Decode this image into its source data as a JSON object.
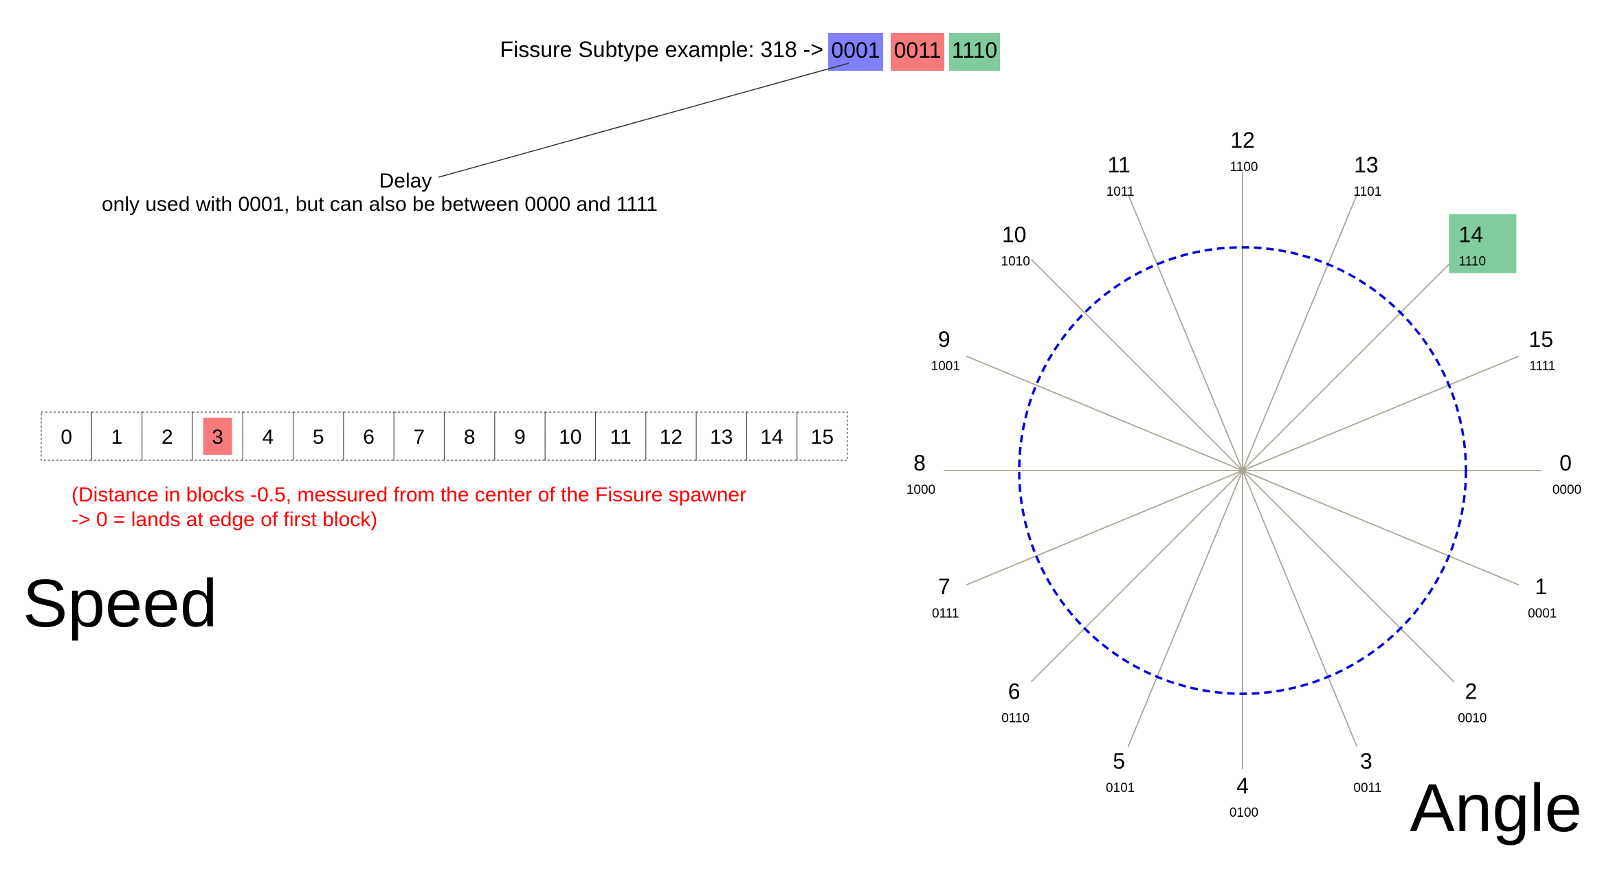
{
  "header": {
    "label": "Fissure Subtype example: 318 ->",
    "segments": [
      {
        "name": "delay",
        "bits": "0001",
        "color": "#8080ff"
      },
      {
        "name": "speed",
        "bits": "0011",
        "color": "#f87b7b"
      },
      {
        "name": "angle",
        "bits": "1110",
        "color": "#80cc9e"
      }
    ]
  },
  "delay": {
    "title": "Delay",
    "note": "only used with 0001, but can also be between 0000 and 1111"
  },
  "speed": {
    "title": "Speed",
    "cells": [
      "0",
      "1",
      "2",
      "3",
      "4",
      "5",
      "6",
      "7",
      "8",
      "9",
      "10",
      "11",
      "12",
      "13",
      "14",
      "15"
    ],
    "selected_value": 3,
    "note_line1": "(Distance in blocks -0.5, messured from the center of the Fissure spawner",
    "note_line2": "-> 0 = lands at edge of first block)",
    "note_color": "#ff0000"
  },
  "angle": {
    "title": "Angle",
    "selected_value": 14,
    "spokes": [
      {
        "value": "0",
        "bits": "0000"
      },
      {
        "value": "1",
        "bits": "0001"
      },
      {
        "value": "2",
        "bits": "0010"
      },
      {
        "value": "3",
        "bits": "0011"
      },
      {
        "value": "4",
        "bits": "0100"
      },
      {
        "value": "5",
        "bits": "0101"
      },
      {
        "value": "6",
        "bits": "0110"
      },
      {
        "value": "7",
        "bits": "0111"
      },
      {
        "value": "8",
        "bits": "1000"
      },
      {
        "value": "9",
        "bits": "1001"
      },
      {
        "value": "10",
        "bits": "1010"
      },
      {
        "value": "11",
        "bits": "1011"
      },
      {
        "value": "12",
        "bits": "1100"
      },
      {
        "value": "13",
        "bits": "1101"
      },
      {
        "value": "14",
        "bits": "1110"
      },
      {
        "value": "15",
        "bits": "1111"
      }
    ],
    "circle_color": "#0000dd",
    "spoke_color": "#aaa594"
  }
}
